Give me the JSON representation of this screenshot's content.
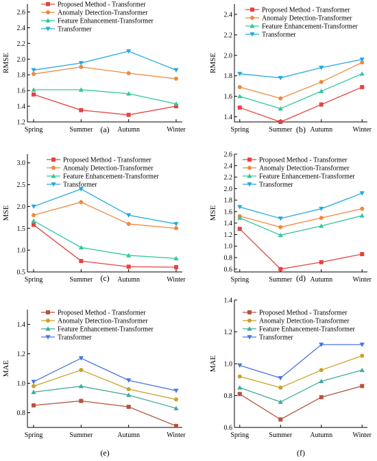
{
  "chart_data": [
    {
      "type": "line",
      "panel_label": "(a)",
      "ylabel": "RMSE",
      "categories": [
        "Spring",
        "Summer",
        "Autumn",
        "Winter"
      ],
      "ylim": [
        1.2,
        2.7
      ],
      "yticks": [
        1.2,
        1.4,
        1.6,
        1.8,
        2.0,
        2.2,
        2.4,
        2.6
      ],
      "legend_position": "top-left",
      "grid": false,
      "series": [
        {
          "name": "Proposed Method - Transformer",
          "color": "#e8423f",
          "marker": "square",
          "values": [
            1.55,
            1.35,
            1.29,
            1.4
          ]
        },
        {
          "name": "Anomaly Detection-Transformer",
          "color": "#f0883c",
          "marker": "circle",
          "values": [
            1.81,
            1.9,
            1.82,
            1.75
          ]
        },
        {
          "name": "Feature Enhancement-Transformer",
          "color": "#2ec99a",
          "marker": "triangle-up",
          "values": [
            1.61,
            1.61,
            1.56,
            1.43
          ]
        },
        {
          "name": "Transformer",
          "color": "#23a9e1",
          "marker": "triangle-down",
          "values": [
            1.86,
            1.95,
            2.1,
            1.86
          ]
        }
      ]
    },
    {
      "type": "line",
      "panel_label": "(b)",
      "ylabel": "RMSE",
      "categories": [
        "Spring",
        "Summer",
        "Autumn",
        "Winter"
      ],
      "ylim": [
        1.35,
        2.5
      ],
      "yticks": [
        1.4,
        1.6,
        1.8,
        2.0,
        2.2,
        2.4
      ],
      "legend_position": "top-right",
      "grid": false,
      "series": [
        {
          "name": "Proposed Method - Transformer",
          "color": "#e8423f",
          "marker": "square",
          "values": [
            1.49,
            1.35,
            1.52,
            1.69
          ]
        },
        {
          "name": "Anomaly Detection-Transformer",
          "color": "#f0883c",
          "marker": "circle",
          "values": [
            1.69,
            1.58,
            1.74,
            1.93
          ]
        },
        {
          "name": "Feature Enhancement-Transformer",
          "color": "#2ec99a",
          "marker": "triangle-up",
          "values": [
            1.6,
            1.48,
            1.65,
            1.82
          ]
        },
        {
          "name": "Transformer",
          "color": "#23a9e1",
          "marker": "triangle-down",
          "values": [
            1.82,
            1.78,
            1.88,
            1.96
          ]
        }
      ]
    },
    {
      "type": "line",
      "panel_label": "(c)",
      "ylabel": "MSE",
      "categories": [
        "Spring",
        "Summer",
        "Autumn",
        "Winter"
      ],
      "ylim": [
        0.5,
        3.2
      ],
      "yticks": [
        0.5,
        1.0,
        1.5,
        2.0,
        2.5,
        3.0
      ],
      "legend_position": "top-right",
      "grid": false,
      "series": [
        {
          "name": "Proposed Method - Transformer",
          "color": "#e8423f",
          "marker": "square",
          "values": [
            1.58,
            0.75,
            0.62,
            0.61
          ]
        },
        {
          "name": "Anomaly Detection-Transformer",
          "color": "#f0883c",
          "marker": "circle",
          "values": [
            1.8,
            2.1,
            1.6,
            1.5
          ]
        },
        {
          "name": "Feature Enhancement-Transformer",
          "color": "#2ec99a",
          "marker": "triangle-up",
          "values": [
            1.67,
            1.06,
            0.88,
            0.81
          ]
        },
        {
          "name": "Transformer",
          "color": "#23a9e1",
          "marker": "triangle-down",
          "values": [
            2.0,
            2.4,
            1.8,
            1.6
          ]
        }
      ]
    },
    {
      "type": "line",
      "panel_label": "(d)",
      "ylabel": "MSE",
      "categories": [
        "Spring",
        "Summer",
        "Autumn",
        "Winter"
      ],
      "ylim": [
        0.55,
        2.6
      ],
      "yticks": [
        0.6,
        0.8,
        1.0,
        1.2,
        1.4,
        1.6,
        1.8,
        2.0,
        2.2,
        2.4,
        2.6
      ],
      "legend_position": "top-right",
      "grid": false,
      "series": [
        {
          "name": "Proposed Method - Transformer",
          "color": "#e8423f",
          "marker": "square",
          "values": [
            1.3,
            0.6,
            0.72,
            0.86
          ]
        },
        {
          "name": "Anomaly Detection-Transformer",
          "color": "#f0883c",
          "marker": "circle",
          "values": [
            1.52,
            1.33,
            1.49,
            1.65
          ]
        },
        {
          "name": "Feature Enhancement-Transformer",
          "color": "#2ec99a",
          "marker": "triangle-up",
          "values": [
            1.49,
            1.19,
            1.35,
            1.53
          ]
        },
        {
          "name": "Transformer",
          "color": "#23a9e1",
          "marker": "triangle-down",
          "values": [
            1.68,
            1.48,
            1.65,
            1.92
          ]
        }
      ]
    },
    {
      "type": "line",
      "panel_label": "(e)",
      "ylabel": "MAE",
      "categories": [
        "Spring",
        "Summer",
        "Autumn",
        "Winter"
      ],
      "ylim": [
        0.7,
        1.5
      ],
      "yticks": [
        0.8,
        1.0,
        1.2,
        1.4
      ],
      "legend_position": "top-right",
      "grid": false,
      "series": [
        {
          "name": "Proposed Method - Transformer",
          "color": "#b5533c",
          "marker": "square",
          "values": [
            0.85,
            0.88,
            0.84,
            0.71
          ]
        },
        {
          "name": "Anomaly Detection-Transformer",
          "color": "#c9a227",
          "marker": "circle",
          "values": [
            0.98,
            1.09,
            0.96,
            0.89
          ]
        },
        {
          "name": "Feature Enhancement-Transformer",
          "color": "#3fab99",
          "marker": "triangle-up",
          "values": [
            0.94,
            0.98,
            0.92,
            0.83
          ]
        },
        {
          "name": "Transformer",
          "color": "#4a74dd",
          "marker": "triangle-down",
          "values": [
            1.01,
            1.17,
            1.02,
            0.95
          ]
        }
      ]
    },
    {
      "type": "line",
      "panel_label": "(f)",
      "ylabel": "MAE",
      "categories": [
        "Spring",
        "Summer",
        "Autumn",
        "Winter"
      ],
      "ylim": [
        0.6,
        1.4
      ],
      "yticks": [
        0.6,
        0.8,
        1.0,
        1.2,
        1.4
      ],
      "legend_position": "top-right",
      "grid": false,
      "series": [
        {
          "name": "Proposed Method - Transformer",
          "color": "#b5533c",
          "marker": "square",
          "values": [
            0.81,
            0.65,
            0.79,
            0.86
          ]
        },
        {
          "name": "Anomaly Detection-Transformer",
          "color": "#c9a227",
          "marker": "circle",
          "values": [
            0.92,
            0.85,
            0.96,
            1.05
          ]
        },
        {
          "name": "Feature Enhancement-Transformer",
          "color": "#3fab99",
          "marker": "triangle-up",
          "values": [
            0.85,
            0.76,
            0.89,
            0.96
          ]
        },
        {
          "name": "Transformer",
          "color": "#4a74dd",
          "marker": "triangle-down",
          "values": [
            0.99,
            0.91,
            1.12,
            1.12
          ]
        }
      ]
    }
  ]
}
